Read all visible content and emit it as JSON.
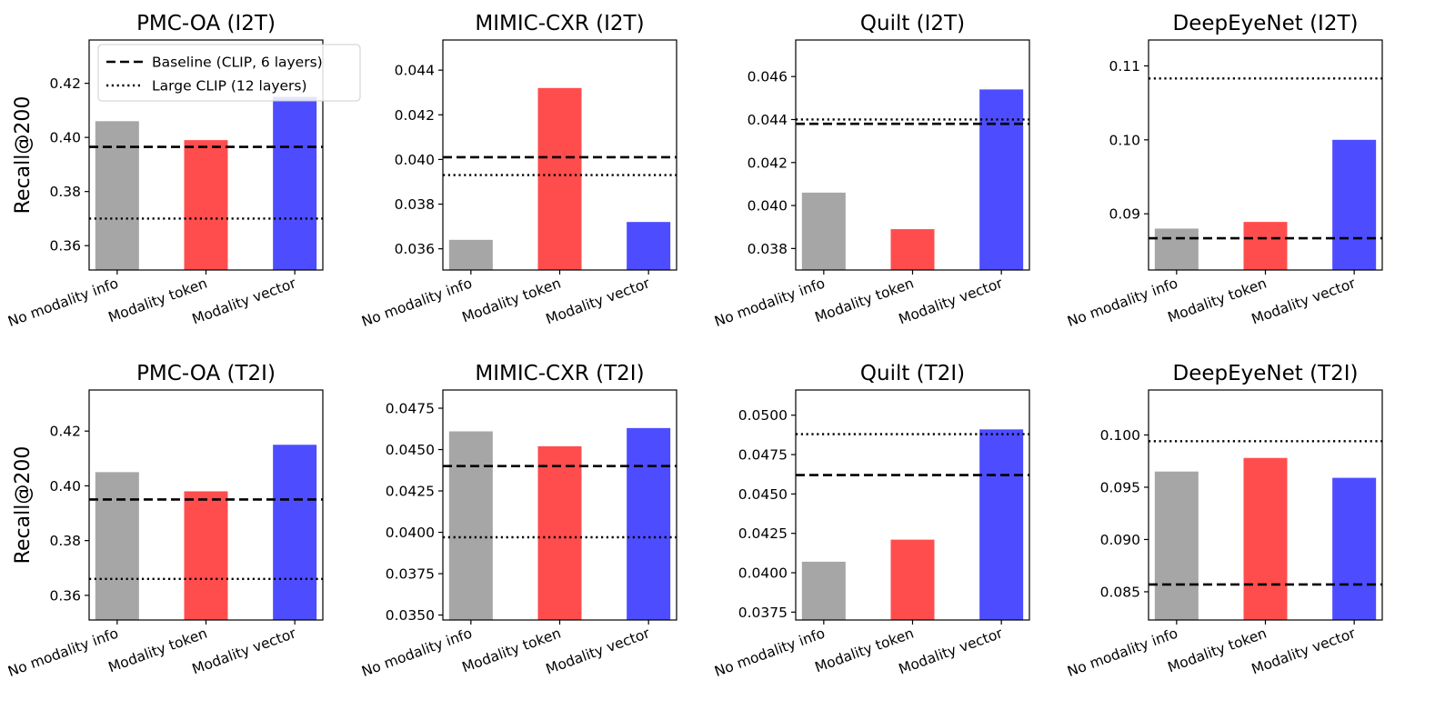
{
  "chart_data": {
    "type": "bar",
    "ylabel": "Recall@200",
    "categories": [
      "No modality info",
      "Modality token",
      "Modality vector"
    ],
    "bar_colors": [
      "#a6a6a6",
      "#ff4d4d",
      "#4d4dff"
    ],
    "legend": {
      "location": "upper-left",
      "entries": [
        {
          "label": "Baseline (CLIP, 6 layers)",
          "style": "dashed"
        },
        {
          "label": "Large CLIP (12 layers)",
          "style": "dotted"
        }
      ]
    },
    "panels": [
      {
        "title": "PMC-OA (I2T)",
        "ylim": [
          0.351,
          0.436
        ],
        "yticks": [
          0.36,
          0.38,
          0.4,
          0.42
        ],
        "tick_decimals": 2,
        "values": [
          0.406,
          0.399,
          0.415
        ],
        "baseline": 0.3965,
        "large_clip": 0.37
      },
      {
        "title": "MIMIC-CXR (I2T)",
        "ylim": [
          0.03505,
          0.04535
        ],
        "yticks": [
          0.036,
          0.038,
          0.04,
          0.042,
          0.044
        ],
        "tick_decimals": 3,
        "values": [
          0.0364,
          0.0432,
          0.0372
        ],
        "baseline": 0.0401,
        "large_clip": 0.0393
      },
      {
        "title": "Quilt (I2T)",
        "ylim": [
          0.037,
          0.0477
        ],
        "yticks": [
          0.038,
          0.04,
          0.042,
          0.044,
          0.046
        ],
        "tick_decimals": 3,
        "values": [
          0.0406,
          0.0389,
          0.0454
        ],
        "baseline": 0.0438,
        "large_clip": 0.044
      },
      {
        "title": "DeepEyeNet (I2T)",
        "ylim": [
          0.0824,
          0.1135
        ],
        "yticks": [
          0.09,
          0.1,
          0.11
        ],
        "tick_decimals": 2,
        "values": [
          0.088,
          0.0889,
          0.1
        ],
        "baseline": 0.0867,
        "large_clip": 0.1083
      },
      {
        "title": "PMC-OA (T2I)",
        "ylim": [
          0.351,
          0.435
        ],
        "yticks": [
          0.36,
          0.38,
          0.4,
          0.42
        ],
        "tick_decimals": 2,
        "values": [
          0.405,
          0.398,
          0.415
        ],
        "baseline": 0.395,
        "large_clip": 0.366
      },
      {
        "title": "MIMIC-CXR (T2I)",
        "ylim": [
          0.0347,
          0.0486
        ],
        "yticks": [
          0.035,
          0.0375,
          0.04,
          0.0425,
          0.045,
          0.0475
        ],
        "tick_decimals": 4,
        "values": [
          0.0461,
          0.0452,
          0.0463
        ],
        "baseline": 0.044,
        "large_clip": 0.0397
      },
      {
        "title": "Quilt (T2I)",
        "ylim": [
          0.037,
          0.0516
        ],
        "yticks": [
          0.0375,
          0.04,
          0.0425,
          0.045,
          0.0475,
          0.05
        ],
        "tick_decimals": 4,
        "values": [
          0.0407,
          0.0421,
          0.0491
        ],
        "baseline": 0.0462,
        "large_clip": 0.0488
      },
      {
        "title": "DeepEyeNet (T2I)",
        "ylim": [
          0.0823,
          0.1043
        ],
        "yticks": [
          0.085,
          0.09,
          0.095,
          0.1
        ],
        "tick_decimals": 3,
        "values": [
          0.0965,
          0.0978,
          0.0959
        ],
        "baseline": 0.0857,
        "large_clip": 0.0994
      }
    ]
  }
}
